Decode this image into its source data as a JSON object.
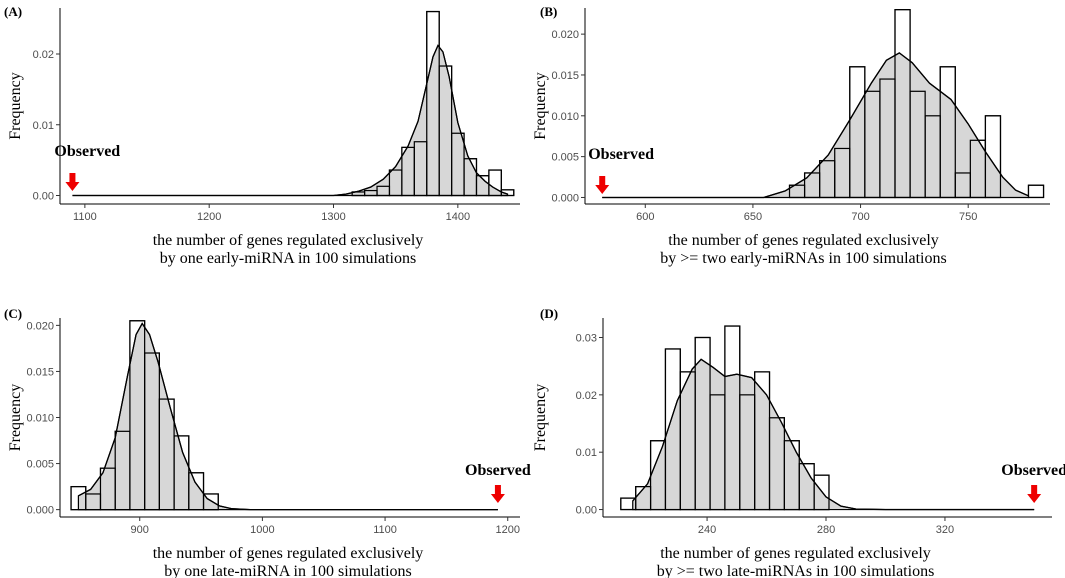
{
  "chart_data": [
    {
      "type": "bar",
      "panel_label": "(A)",
      "ylabel": "Frequency",
      "xlabel_line1": "the number of genes regulated exclusively",
      "xlabel_line2": "by one early-miRNA in 100 simulations",
      "observed_label": "Observed",
      "observed_value": 1090,
      "xlim": [
        1080,
        1450
      ],
      "ylim": [
        -0.0012,
        0.0265
      ],
      "xticks": [
        1100,
        1200,
        1300,
        1400
      ],
      "xtick_labels": [
        "1100",
        "1200",
        "1300",
        "1400"
      ],
      "yticks": [
        0,
        0.01,
        0.02
      ],
      "ytick_labels": [
        "0.00",
        "0.01",
        "0.02"
      ],
      "bin_width": 10,
      "bins": [
        {
          "x": 1320,
          "y": 0.0005
        },
        {
          "x": 1330,
          "y": 0.0007
        },
        {
          "x": 1340,
          "y": 0.0013
        },
        {
          "x": 1350,
          "y": 0.0036
        },
        {
          "x": 1360,
          "y": 0.0068
        },
        {
          "x": 1370,
          "y": 0.0076
        },
        {
          "x": 1380,
          "y": 0.026
        },
        {
          "x": 1390,
          "y": 0.0183
        },
        {
          "x": 1400,
          "y": 0.0088
        },
        {
          "x": 1410,
          "y": 0.0052
        },
        {
          "x": 1420,
          "y": 0.0028
        },
        {
          "x": 1430,
          "y": 0.0036
        },
        {
          "x": 1440,
          "y": 0.0008
        }
      ],
      "density": [
        [
          1090,
          0
        ],
        [
          1300,
          0
        ],
        [
          1310,
          0.0002
        ],
        [
          1320,
          0.0006
        ],
        [
          1330,
          0.0012
        ],
        [
          1340,
          0.0023
        ],
        [
          1350,
          0.0041
        ],
        [
          1360,
          0.007
        ],
        [
          1368,
          0.0105
        ],
        [
          1375,
          0.0158
        ],
        [
          1380,
          0.0196
        ],
        [
          1384,
          0.0212
        ],
        [
          1388,
          0.0203
        ],
        [
          1393,
          0.0168
        ],
        [
          1400,
          0.0103
        ],
        [
          1408,
          0.0056
        ],
        [
          1415,
          0.0032
        ],
        [
          1422,
          0.002
        ],
        [
          1428,
          0.0012
        ],
        [
          1435,
          0.0005
        ],
        [
          1440,
          0.0002
        ]
      ]
    },
    {
      "type": "bar",
      "panel_label": "(B)",
      "ylabel": "Frequency",
      "xlabel_line1": "the number of genes regulated exclusively",
      "xlabel_line2": "by >= two early-miRNAs in 100 simulations",
      "observed_label": "Observed",
      "observed_value": 580,
      "xlim": [
        572,
        788
      ],
      "ylim": [
        -0.0008,
        0.0232
      ],
      "xticks": [
        600,
        650,
        700,
        750
      ],
      "xtick_labels": [
        "600",
        "650",
        "700",
        "750"
      ],
      "yticks": [
        0,
        0.005,
        0.01,
        0.015,
        0.02
      ],
      "ytick_labels": [
        "0.000",
        "0.005",
        "0.010",
        "0.015",
        "0.020"
      ],
      "bin_width": 7,
      "bins": [
        {
          "x": 670.5,
          "y": 0.0015
        },
        {
          "x": 677.5,
          "y": 0.003
        },
        {
          "x": 684.5,
          "y": 0.0045
        },
        {
          "x": 691.5,
          "y": 0.006
        },
        {
          "x": 698.5,
          "y": 0.016
        },
        {
          "x": 705.5,
          "y": 0.013
        },
        {
          "x": 712.5,
          "y": 0.0145
        },
        {
          "x": 719.5,
          "y": 0.023
        },
        {
          "x": 726.5,
          "y": 0.013
        },
        {
          "x": 733.5,
          "y": 0.01
        },
        {
          "x": 740.5,
          "y": 0.016
        },
        {
          "x": 747.5,
          "y": 0.003
        },
        {
          "x": 754.5,
          "y": 0.007
        },
        {
          "x": 761.5,
          "y": 0.01
        },
        {
          "x": 781.5,
          "y": 0.0015
        }
      ],
      "density": [
        [
          580,
          0
        ],
        [
          655,
          0
        ],
        [
          665,
          0.0008
        ],
        [
          675,
          0.0024
        ],
        [
          685,
          0.0052
        ],
        [
          695,
          0.0095
        ],
        [
          705,
          0.014
        ],
        [
          712,
          0.0168
        ],
        [
          718,
          0.0177
        ],
        [
          724,
          0.0165
        ],
        [
          732,
          0.014
        ],
        [
          742,
          0.012
        ],
        [
          750,
          0.009
        ],
        [
          758,
          0.0056
        ],
        [
          766,
          0.0025
        ],
        [
          772,
          0.0009
        ],
        [
          778,
          0.0002
        ]
      ]
    },
    {
      "type": "bar",
      "panel_label": "(C)",
      "ylabel": "Frequency",
      "xlabel_line1": "the number of genes regulated exclusively",
      "xlabel_line2": "by one late-miRNA in 100 simulations",
      "observed_label": "Observed",
      "observed_value": 1192,
      "xlim": [
        835,
        1210
      ],
      "ylim": [
        -0.0008,
        0.0208
      ],
      "xticks": [
        900,
        1000,
        1100,
        1200
      ],
      "xtick_labels": [
        "900",
        "1000",
        "1100",
        "1200"
      ],
      "yticks": [
        0,
        0.005,
        0.01,
        0.015,
        0.02
      ],
      "ytick_labels": [
        "0.000",
        "0.005",
        "0.010",
        "0.015",
        "0.020"
      ],
      "bin_width": 12,
      "bins": [
        {
          "x": 850,
          "y": 0.0025
        },
        {
          "x": 862,
          "y": 0.0017
        },
        {
          "x": 874,
          "y": 0.0045
        },
        {
          "x": 886,
          "y": 0.0085
        },
        {
          "x": 898,
          "y": 0.0205
        },
        {
          "x": 910,
          "y": 0.017
        },
        {
          "x": 922,
          "y": 0.012
        },
        {
          "x": 934,
          "y": 0.008
        },
        {
          "x": 946,
          "y": 0.004
        },
        {
          "x": 958,
          "y": 0.0017
        }
      ],
      "density": [
        [
          850,
          0.0015
        ],
        [
          860,
          0.0022
        ],
        [
          870,
          0.004
        ],
        [
          880,
          0.0078
        ],
        [
          890,
          0.0145
        ],
        [
          897,
          0.019
        ],
        [
          902,
          0.0202
        ],
        [
          908,
          0.019
        ],
        [
          915,
          0.016
        ],
        [
          925,
          0.011
        ],
        [
          935,
          0.0062
        ],
        [
          945,
          0.003
        ],
        [
          955,
          0.0012
        ],
        [
          965,
          0.0004
        ],
        [
          975,
          0.0001
        ],
        [
          990,
          0
        ],
        [
          1192,
          0
        ]
      ]
    },
    {
      "type": "bar",
      "panel_label": "(D)",
      "ylabel": "Frequency",
      "xlabel_line1": "the number of genes regulated exclusively",
      "xlabel_line2": "by >= two late-miRNAs in 100 simulations",
      "observed_label": "Observed",
      "observed_value": 350,
      "xlim": [
        205,
        356
      ],
      "ylim": [
        -0.0013,
        0.0334
      ],
      "xticks": [
        240,
        280,
        320
      ],
      "xtick_labels": [
        "240",
        "280",
        "320"
      ],
      "yticks": [
        0,
        0.01,
        0.02,
        0.03
      ],
      "ytick_labels": [
        "0.00",
        "0.01",
        "0.02",
        "0.03"
      ],
      "bin_width": 5,
      "bins": [
        {
          "x": 213.5,
          "y": 0.002
        },
        {
          "x": 218.5,
          "y": 0.004
        },
        {
          "x": 223.5,
          "y": 0.012
        },
        {
          "x": 228.5,
          "y": 0.028
        },
        {
          "x": 233.5,
          "y": 0.024
        },
        {
          "x": 238.5,
          "y": 0.03
        },
        {
          "x": 243.5,
          "y": 0.02
        },
        {
          "x": 248.5,
          "y": 0.032
        },
        {
          "x": 253.5,
          "y": 0.02
        },
        {
          "x": 258.5,
          "y": 0.024
        },
        {
          "x": 263.5,
          "y": 0.016
        },
        {
          "x": 268.5,
          "y": 0.012
        },
        {
          "x": 273.5,
          "y": 0.008
        },
        {
          "x": 278.5,
          "y": 0.006
        }
      ],
      "density": [
        [
          215,
          0.0015
        ],
        [
          220,
          0.0045
        ],
        [
          225,
          0.011
        ],
        [
          230,
          0.019
        ],
        [
          235,
          0.0245
        ],
        [
          238,
          0.0262
        ],
        [
          242,
          0.0248
        ],
        [
          246,
          0.0232
        ],
        [
          250,
          0.0236
        ],
        [
          255,
          0.023
        ],
        [
          260,
          0.02
        ],
        [
          265,
          0.0152
        ],
        [
          270,
          0.01
        ],
        [
          275,
          0.0055
        ],
        [
          280,
          0.0022
        ],
        [
          285,
          0.0006
        ],
        [
          290,
          0.0001
        ],
        [
          300,
          0
        ],
        [
          350,
          0
        ]
      ]
    }
  ],
  "colors": {
    "bar_fill": "#ffffff",
    "density_fill": "#d3d3d3",
    "outline": "#000000",
    "arrow": "#ee0000",
    "tick_text": "#4d4d4d"
  }
}
